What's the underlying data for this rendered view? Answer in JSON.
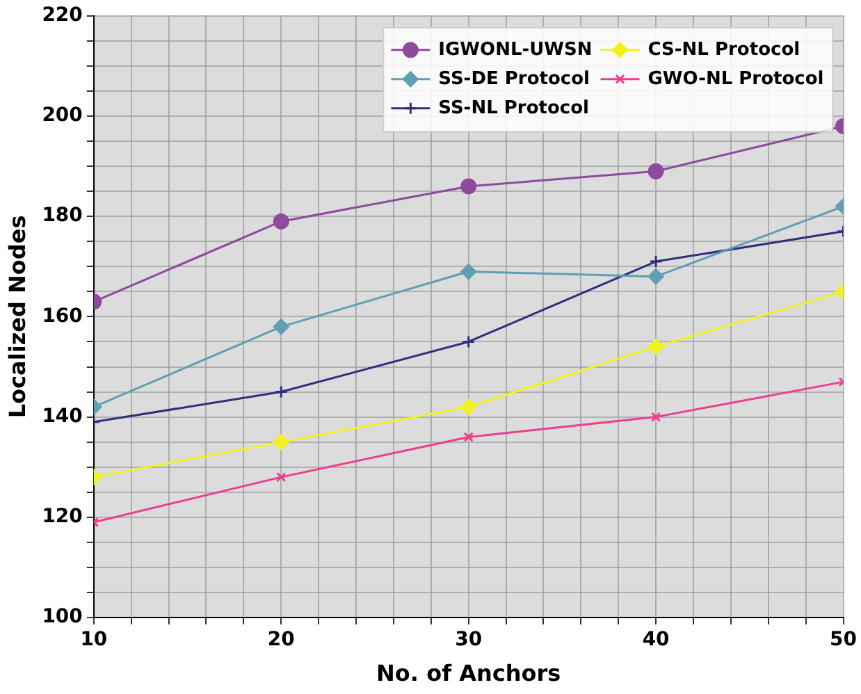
{
  "chart_data": {
    "type": "line",
    "xlabel": "No. of Anchors",
    "ylabel": "Localized Nodes",
    "x": [
      10,
      20,
      30,
      40,
      50
    ],
    "series": [
      {
        "name": "IGWONL-UWSN",
        "color": "#8e4a9c",
        "marker": "circle",
        "values": [
          163,
          179,
          186,
          189,
          198
        ]
      },
      {
        "name": "SS-DE Protocol",
        "color": "#5e9fb3",
        "marker": "diamond",
        "values": [
          142,
          158,
          169,
          168,
          182
        ]
      },
      {
        "name": "SS-NL Protocol",
        "color": "#2f2f80",
        "marker": "plus",
        "values": [
          139,
          145,
          155,
          171,
          177
        ]
      },
      {
        "name": "CS-NL Protocol",
        "color": "#f2f21c",
        "marker": "diamond",
        "values": [
          128,
          135,
          142,
          154,
          165
        ]
      },
      {
        "name": "GWO-NL Protocol",
        "color": "#ee3d8f",
        "marker": "cross",
        "values": [
          119,
          128,
          136,
          140,
          147
        ]
      }
    ],
    "xlim": [
      10,
      50
    ],
    "xticks": [
      10,
      {
        "value": 12,
        "label": null
      },
      {
        "value": 14,
        "label": null
      },
      {
        "value": 16,
        "label": null
      },
      {
        "value": 18,
        "label": null
      },
      20,
      {
        "value": 22,
        "label": null
      },
      {
        "value": 24,
        "label": null
      },
      {
        "value": 26,
        "label": null
      },
      {
        "value": 28,
        "label": null
      },
      30,
      {
        "value": 32,
        "label": null
      },
      {
        "value": 34,
        "label": null
      },
      {
        "value": 36,
        "label": null
      },
      {
        "value": 38,
        "label": null
      },
      40,
      {
        "value": 42,
        "label": null
      },
      {
        "value": 44,
        "label": null
      },
      {
        "value": 46,
        "label": null
      },
      {
        "value": 48,
        "label": null
      },
      50
    ],
    "ylim": [
      100,
      220
    ],
    "yticks": [
      100,
      {
        "value": 105,
        "label": null
      },
      {
        "value": 110,
        "label": null
      },
      {
        "value": 115,
        "label": null
      },
      120,
      {
        "value": 125,
        "label": null
      },
      {
        "value": 130,
        "label": null
      },
      {
        "value": 135,
        "label": null
      },
      140,
      {
        "value": 145,
        "label": null
      },
      {
        "value": 150,
        "label": null
      },
      {
        "value": 155,
        "label": null
      },
      160,
      {
        "value": 165,
        "label": null
      },
      {
        "value": 170,
        "label": null
      },
      {
        "value": 175,
        "label": null
      },
      180,
      {
        "value": 185,
        "label": null
      },
      {
        "value": 190,
        "label": null
      },
      {
        "value": 195,
        "label": null
      },
      200,
      {
        "value": 205,
        "label": null
      },
      {
        "value": 210,
        "label": null
      },
      {
        "value": 215,
        "label": null
      },
      220
    ],
    "grid": true,
    "legend": "top right",
    "line_style": "solid"
  }
}
